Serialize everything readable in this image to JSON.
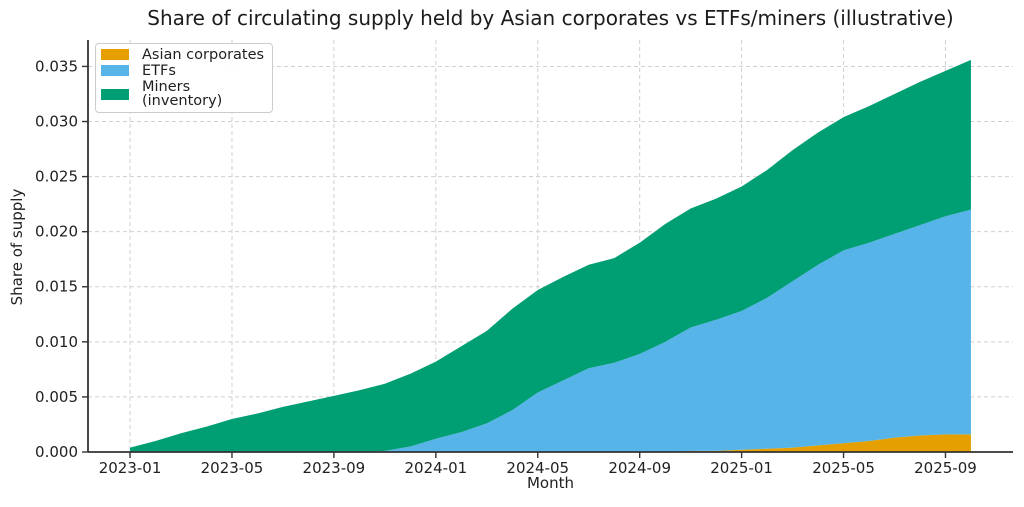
{
  "chart_data": {
    "type": "area",
    "stacked": true,
    "title": "Share of circulating supply held by Asian corporates vs ETFs/miners (illustrative)",
    "xlabel": "Month",
    "ylabel": "Share of supply",
    "grid": true,
    "legend_position": "upper left",
    "ylim": [
      0,
      0.0374
    ],
    "yticks": [
      0,
      0.005,
      0.01,
      0.015,
      0.02,
      0.025,
      0.03,
      0.035
    ],
    "ytick_labels": [
      "0.000",
      "0.005",
      "0.010",
      "0.015",
      "0.020",
      "0.025",
      "0.030",
      "0.035"
    ],
    "xtick_indices": [
      0,
      4,
      8,
      12,
      16,
      20,
      24,
      28,
      32
    ],
    "xtick_labels": [
      "2023-01",
      "2023-05",
      "2023-09",
      "2024-01",
      "2024-05",
      "2024-09",
      "2025-01",
      "2025-05",
      "2025-09"
    ],
    "x": [
      "2023-01",
      "2023-02",
      "2023-03",
      "2023-04",
      "2023-05",
      "2023-06",
      "2023-07",
      "2023-08",
      "2023-09",
      "2023-10",
      "2023-11",
      "2023-12",
      "2024-01",
      "2024-02",
      "2024-03",
      "2024-04",
      "2024-05",
      "2024-06",
      "2024-07",
      "2024-08",
      "2024-09",
      "2024-10",
      "2024-11",
      "2024-12",
      "2025-01",
      "2025-02",
      "2025-03",
      "2025-04",
      "2025-05",
      "2025-06",
      "2025-07",
      "2025-08",
      "2025-09",
      "2025-10"
    ],
    "series": [
      {
        "name": "Asian corporates",
        "color": "#E69F00",
        "values": [
          0,
          0,
          0,
          0,
          0,
          0,
          0,
          0,
          0,
          0,
          0,
          0,
          0,
          0,
          0,
          0,
          0,
          0,
          0,
          0,
          0,
          0,
          0.0001,
          0.0001,
          0.0002,
          0.0003,
          0.0004,
          0.0006,
          0.0008,
          0.001,
          0.0013,
          0.0015,
          0.0016,
          0.0016
        ]
      },
      {
        "name": "ETFs",
        "color": "#56B4E9",
        "values": [
          0,
          0,
          0,
          0,
          0,
          0,
          0,
          0,
          0,
          0,
          0.0001,
          0.0005,
          0.0012,
          0.0018,
          0.0026,
          0.0038,
          0.0054,
          0.0065,
          0.0076,
          0.0081,
          0.0089,
          0.01,
          0.0112,
          0.0119,
          0.0126,
          0.0137,
          0.0151,
          0.0164,
          0.0175,
          0.018,
          0.0185,
          0.0191,
          0.0198,
          0.0204
        ]
      },
      {
        "name": "Miners (inventory)",
        "color": "#009E73",
        "values": [
          0.0004,
          0.001,
          0.0017,
          0.0023,
          0.003,
          0.0035,
          0.0041,
          0.0046,
          0.0051,
          0.0056,
          0.0061,
          0.0066,
          0.007,
          0.0078,
          0.0084,
          0.0092,
          0.0093,
          0.0094,
          0.0094,
          0.0095,
          0.0101,
          0.0107,
          0.0108,
          0.011,
          0.0113,
          0.0116,
          0.0119,
          0.012,
          0.0121,
          0.0124,
          0.0127,
          0.013,
          0.0132,
          0.0136
        ]
      }
    ],
    "style": {
      "grid_color": "#d0d0d0",
      "spine_color": "#333333",
      "tick_label_color": "#212121",
      "background": "#ffffff"
    }
  }
}
